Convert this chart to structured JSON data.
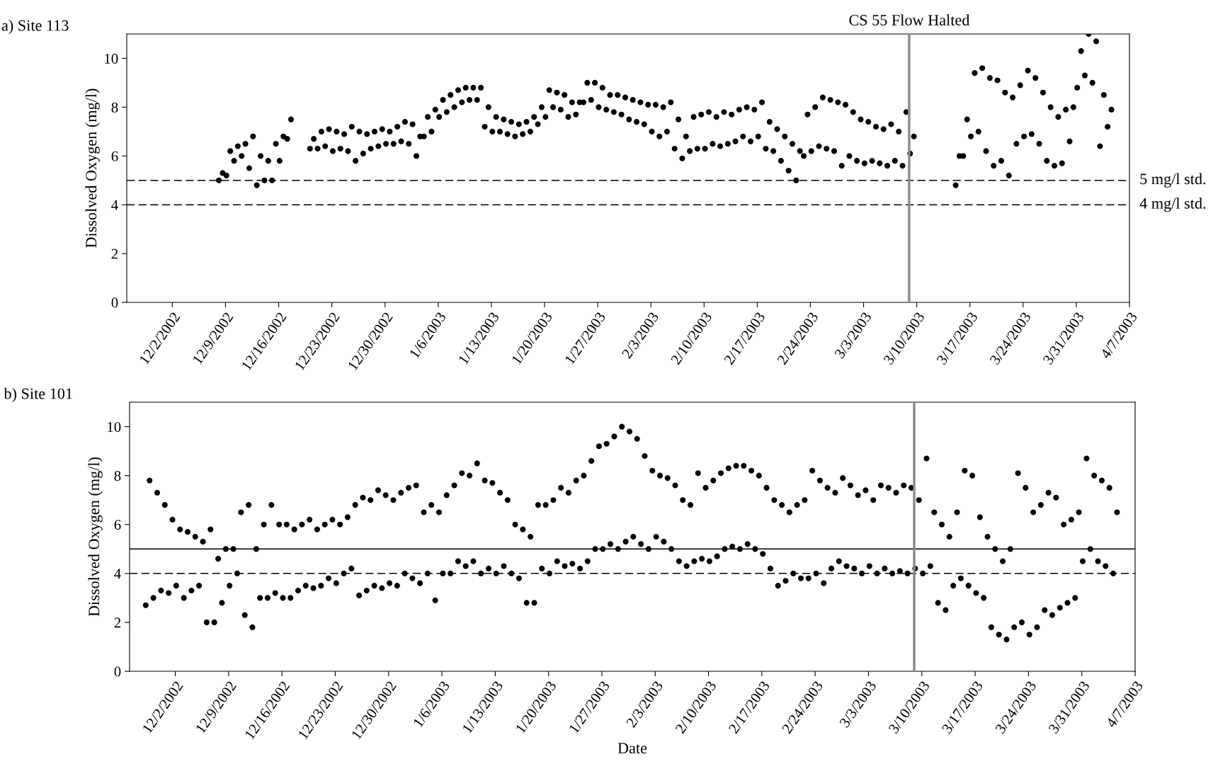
{
  "chart_data": [
    {
      "type": "scatter",
      "title": "a) Site 113",
      "ylabel": "Dissolved Oxygen (mg/l)",
      "marker": "circle",
      "xlim": [
        "2002-11-26",
        "2003-04-07"
      ],
      "xticks": [
        {
          "value": "2002-12-02",
          "label": "12/2/2002"
        },
        {
          "value": "2002-12-09",
          "label": "12/9/2002"
        },
        {
          "value": "2002-12-16",
          "label": "12/16/2002"
        },
        {
          "value": "2002-12-23",
          "label": "12/23/2002"
        },
        {
          "value": "2002-12-30",
          "label": "12/30/2002"
        },
        {
          "value": "2003-01-06",
          "label": "1/6/2003"
        },
        {
          "value": "2003-01-13",
          "label": "1/13/2003"
        },
        {
          "value": "2003-01-20",
          "label": "1/20/2003"
        },
        {
          "value": "2003-01-27",
          "label": "1/27/2003"
        },
        {
          "value": "2003-02-03",
          "label": "2/3/2003"
        },
        {
          "value": "2003-02-10",
          "label": "2/10/2003"
        },
        {
          "value": "2003-02-17",
          "label": "2/17/2003"
        },
        {
          "value": "2003-02-24",
          "label": "2/24/2003"
        },
        {
          "value": "2003-03-03",
          "label": "3/3/2003"
        },
        {
          "value": "2003-03-10",
          "label": "3/10/2003"
        },
        {
          "value": "2003-03-17",
          "label": "3/17/2003"
        },
        {
          "value": "2003-03-24",
          "label": "3/24/2003"
        },
        {
          "value": "2003-03-31",
          "label": "3/31/2003"
        },
        {
          "value": "2003-04-07",
          "label": "4/7/2003"
        }
      ],
      "ylim": [
        0,
        11
      ],
      "yticks": [
        0,
        2,
        4,
        6,
        8,
        10
      ],
      "ref_lines": [
        {
          "axis": "y",
          "value": 5,
          "label": "5 mg/l std.",
          "color": "#000000",
          "line_style": "dashed"
        },
        {
          "axis": "y",
          "value": 4,
          "label": "4 mg/l std.",
          "color": "#000000",
          "line_style": "dashed"
        },
        {
          "axis": "x",
          "value": "2003-03-09",
          "label": "CS 55 Flow Halted",
          "color": "#8c8c8c",
          "line_style": "solid"
        }
      ],
      "series": [
        {
          "color": "#000000",
          "x": [
            "2002-12-08T03:00",
            "2002-12-08T15:00",
            "2002-12-09T03:00",
            "2002-12-09T15:00",
            "2002-12-10T03:00",
            "2002-12-10T15:00",
            "2002-12-11T03:00",
            "2002-12-11T15:00",
            "2002-12-12T03:00",
            "2002-12-12T15:00",
            "2002-12-13T03:00",
            "2002-12-13T15:00",
            "2002-12-14T03:00",
            "2002-12-14T15:00",
            "2002-12-15T03:00",
            "2002-12-15T15:00",
            "2002-12-16T03:00",
            "2002-12-16T15:00",
            "2002-12-17T03:00",
            "2002-12-17T15:00",
            "2002-12-20T03:00",
            "2002-12-20T15:00",
            "2002-12-21T03:00",
            "2002-12-21T15:00",
            "2002-12-22T03:00",
            "2002-12-22T15:00",
            "2002-12-23T03:00",
            "2002-12-23T15:00",
            "2002-12-24T03:00",
            "2002-12-24T15:00",
            "2002-12-25T03:00",
            "2002-12-25T15:00",
            "2002-12-26T03:00",
            "2002-12-26T15:00",
            "2002-12-27T03:00",
            "2002-12-27T15:00",
            "2002-12-28T03:00",
            "2002-12-28T15:00",
            "2002-12-29T03:00",
            "2002-12-29T15:00",
            "2002-12-30T03:00",
            "2002-12-30T15:00",
            "2002-12-31T03:00",
            "2002-12-31T15:00",
            "2003-01-01T03:00",
            "2003-01-01T15:00",
            "2003-01-02T03:00",
            "2003-01-02T15:00",
            "2003-01-03T03:00",
            "2003-01-03T15:00",
            "2003-01-04T03:00",
            "2003-01-04T15:00",
            "2003-01-05T03:00",
            "2003-01-05T15:00",
            "2003-01-06T03:00",
            "2003-01-06T15:00",
            "2003-01-07T03:00",
            "2003-01-07T15:00",
            "2003-01-08T03:00",
            "2003-01-08T15:00",
            "2003-01-09T03:00",
            "2003-01-09T15:00",
            "2003-01-10T03:00",
            "2003-01-10T15:00",
            "2003-01-11T03:00",
            "2003-01-11T15:00",
            "2003-01-12T03:00",
            "2003-01-12T15:00",
            "2003-01-13T03:00",
            "2003-01-13T15:00",
            "2003-01-14T03:00",
            "2003-01-14T15:00",
            "2003-01-15T03:00",
            "2003-01-15T15:00",
            "2003-01-16T03:00",
            "2003-01-16T15:00",
            "2003-01-17T03:00",
            "2003-01-17T15:00",
            "2003-01-18T03:00",
            "2003-01-18T15:00",
            "2003-01-19T03:00",
            "2003-01-19T15:00",
            "2003-01-20T03:00",
            "2003-01-20T15:00",
            "2003-01-21T03:00",
            "2003-01-21T15:00",
            "2003-01-22T03:00",
            "2003-01-22T15:00",
            "2003-01-23T03:00",
            "2003-01-23T15:00",
            "2003-01-24T03:00",
            "2003-01-24T15:00",
            "2003-01-25T03:00",
            "2003-01-25T15:00",
            "2003-01-26T03:00",
            "2003-01-26T15:00",
            "2003-01-27T03:00",
            "2003-01-27T15:00",
            "2003-01-28T03:00",
            "2003-01-28T15:00",
            "2003-01-29T03:00",
            "2003-01-29T15:00",
            "2003-01-30T03:00",
            "2003-01-30T15:00",
            "2003-01-31T03:00",
            "2003-01-31T15:00",
            "2003-02-01T03:00",
            "2003-02-01T15:00",
            "2003-02-02T03:00",
            "2003-02-02T15:00",
            "2003-02-03T03:00",
            "2003-02-03T15:00",
            "2003-02-04T03:00",
            "2003-02-04T15:00",
            "2003-02-05T03:00",
            "2003-02-05T15:00",
            "2003-02-06T03:00",
            "2003-02-06T15:00",
            "2003-02-07T03:00",
            "2003-02-07T15:00",
            "2003-02-08T03:00",
            "2003-02-08T15:00",
            "2003-02-09T03:00",
            "2003-02-09T15:00",
            "2003-02-10T03:00",
            "2003-02-10T15:00",
            "2003-02-11T03:00",
            "2003-02-11T15:00",
            "2003-02-12T03:00",
            "2003-02-12T15:00",
            "2003-02-13T03:00",
            "2003-02-13T15:00",
            "2003-02-14T03:00",
            "2003-02-14T15:00",
            "2003-02-15T03:00",
            "2003-02-15T15:00",
            "2003-02-16T03:00",
            "2003-02-16T15:00",
            "2003-02-17T03:00",
            "2003-02-17T15:00",
            "2003-02-18T03:00",
            "2003-02-18T15:00",
            "2003-02-19T03:00",
            "2003-02-19T15:00",
            "2003-02-20T03:00",
            "2003-02-20T15:00",
            "2003-02-21T03:00",
            "2003-02-21T15:00",
            "2003-02-22T03:00",
            "2003-02-22T15:00",
            "2003-02-23T03:00",
            "2003-02-23T15:00",
            "2003-02-24T03:00",
            "2003-02-24T15:00",
            "2003-02-25T03:00",
            "2003-02-25T15:00",
            "2003-02-26T03:00",
            "2003-02-26T15:00",
            "2003-02-27T03:00",
            "2003-02-27T15:00",
            "2003-02-28T03:00",
            "2003-02-28T15:00",
            "2003-03-01T03:00",
            "2003-03-01T15:00",
            "2003-03-02T03:00",
            "2003-03-02T15:00",
            "2003-03-03T03:00",
            "2003-03-03T15:00",
            "2003-03-04T03:00",
            "2003-03-04T15:00",
            "2003-03-05T03:00",
            "2003-03-05T15:00",
            "2003-03-06T03:00",
            "2003-03-06T15:00",
            "2003-03-07T03:00",
            "2003-03-07T15:00",
            "2003-03-08T03:00",
            "2003-03-08T15:00",
            "2003-03-09T03:00",
            "2003-03-09T15:00",
            "2003-03-15T03:00",
            "2003-03-15T15:00",
            "2003-03-16T03:00",
            "2003-03-16T15:00",
            "2003-03-17T03:00",
            "2003-03-17T15:00",
            "2003-03-18T03:00",
            "2003-03-18T15:00",
            "2003-03-19T03:00",
            "2003-03-19T15:00",
            "2003-03-20T03:00",
            "2003-03-20T15:00",
            "2003-03-21T03:00",
            "2003-03-21T15:00",
            "2003-03-22T03:00",
            "2003-03-22T15:00",
            "2003-03-23T03:00",
            "2003-03-23T15:00",
            "2003-03-24T03:00",
            "2003-03-24T15:00",
            "2003-03-25T03:00",
            "2003-03-25T15:00",
            "2003-03-26T03:00",
            "2003-03-26T15:00",
            "2003-03-27T03:00",
            "2003-03-27T15:00",
            "2003-03-28T03:00",
            "2003-03-28T15:00",
            "2003-03-29T03:00",
            "2003-03-29T15:00",
            "2003-03-30T03:00",
            "2003-03-30T15:00",
            "2003-03-31T03:00",
            "2003-03-31T15:00",
            "2003-04-01T03:00",
            "2003-04-01T15:00",
            "2003-04-02T03:00",
            "2003-04-02T15:00",
            "2003-04-03T03:00",
            "2003-04-03T15:00",
            "2003-04-04T03:00",
            "2003-04-04T15:00"
          ],
          "values": [
            5.0,
            5.3,
            5.2,
            6.2,
            5.8,
            6.4,
            6.0,
            6.5,
            5.5,
            6.8,
            4.8,
            6.0,
            5.0,
            5.8,
            5.0,
            6.5,
            5.8,
            6.8,
            6.7,
            7.5,
            6.3,
            6.7,
            6.3,
            7.0,
            6.4,
            7.1,
            6.2,
            7.0,
            6.3,
            6.9,
            6.2,
            7.2,
            5.8,
            7.0,
            6.1,
            6.9,
            6.3,
            7.0,
            6.4,
            7.1,
            6.5,
            7.0,
            6.5,
            7.2,
            6.6,
            7.4,
            6.5,
            7.3,
            6.0,
            6.8,
            6.8,
            7.6,
            7.0,
            7.9,
            7.6,
            8.3,
            7.8,
            8.5,
            8.0,
            8.7,
            8.2,
            8.8,
            8.3,
            8.8,
            8.3,
            8.8,
            7.2,
            8.0,
            7.0,
            7.6,
            7.0,
            7.5,
            6.9,
            7.4,
            6.8,
            7.3,
            6.9,
            7.4,
            7.0,
            7.6,
            7.3,
            8.0,
            7.6,
            8.7,
            8.0,
            8.6,
            7.9,
            8.5,
            7.6,
            8.2,
            7.7,
            8.2,
            8.2,
            9.0,
            8.3,
            9.0,
            8.0,
            8.8,
            7.9,
            8.5,
            7.8,
            8.5,
            7.7,
            8.4,
            7.5,
            8.3,
            7.4,
            8.2,
            7.3,
            8.1,
            7.0,
            8.1,
            6.8,
            8.0,
            7.0,
            8.2,
            6.3,
            7.5,
            5.9,
            6.8,
            6.2,
            7.6,
            6.3,
            7.7,
            6.3,
            7.8,
            6.5,
            7.6,
            6.4,
            7.8,
            6.5,
            7.7,
            6.6,
            7.9,
            6.8,
            8.0,
            6.6,
            7.9,
            6.8,
            8.2,
            6.3,
            7.4,
            6.2,
            7.1,
            5.8,
            6.8,
            5.4,
            6.5,
            5.0,
            6.2,
            6.0,
            7.7,
            6.2,
            8.0,
            6.4,
            8.4,
            6.3,
            8.3,
            6.2,
            8.2,
            5.6,
            8.1,
            6.0,
            7.8,
            5.8,
            7.5,
            5.7,
            7.4,
            5.8,
            7.2,
            5.7,
            7.1,
            5.6,
            7.3,
            5.8,
            7.0,
            5.6,
            7.8,
            6.1,
            6.8,
            4.8,
            6.0,
            6.0,
            7.5,
            6.8,
            9.4,
            7.0,
            9.6,
            6.2,
            9.2,
            5.6,
            9.1,
            5.8,
            8.6,
            5.2,
            8.4,
            6.5,
            8.9,
            6.8,
            9.5,
            6.9,
            9.2,
            6.5,
            8.6,
            5.8,
            8.0,
            5.6,
            7.6,
            5.7,
            7.9,
            6.6,
            8.0,
            8.8,
            10.3,
            9.3,
            11.0,
            9.0,
            10.7,
            6.4,
            8.5,
            7.2,
            7.9
          ]
        }
      ]
    },
    {
      "type": "scatter",
      "title": "b) Site 101",
      "xlabel": "Date",
      "ylabel": "Dissolved Oxygen (mg/l)",
      "marker": "circle",
      "xlim": [
        "2002-11-26",
        "2003-04-07"
      ],
      "xticks": [
        {
          "value": "2002-12-02",
          "label": "12/2/2002"
        },
        {
          "value": "2002-12-09",
          "label": "12/9/2002"
        },
        {
          "value": "2002-12-16",
          "label": "12/16/2002"
        },
        {
          "value": "2002-12-23",
          "label": "12/23/2002"
        },
        {
          "value": "2002-12-30",
          "label": "12/30/2002"
        },
        {
          "value": "2003-01-06",
          "label": "1/6/2003"
        },
        {
          "value": "2003-01-13",
          "label": "1/13/2003"
        },
        {
          "value": "2003-01-20",
          "label": "1/20/2003"
        },
        {
          "value": "2003-01-27",
          "label": "1/27/2003"
        },
        {
          "value": "2003-02-03",
          "label": "2/3/2003"
        },
        {
          "value": "2003-02-10",
          "label": "2/10/2003"
        },
        {
          "value": "2003-02-17",
          "label": "2/17/2003"
        },
        {
          "value": "2003-02-24",
          "label": "2/24/2003"
        },
        {
          "value": "2003-03-03",
          "label": "3/3/2003"
        },
        {
          "value": "2003-03-10",
          "label": "3/10/2003"
        },
        {
          "value": "2003-03-17",
          "label": "3/17/2003"
        },
        {
          "value": "2003-03-24",
          "label": "3/24/2003"
        },
        {
          "value": "2003-03-31",
          "label": "3/31/2003"
        },
        {
          "value": "2003-04-07",
          "label": "4/7/2003"
        }
      ],
      "ylim": [
        0,
        11
      ],
      "yticks": [
        0,
        2,
        4,
        6,
        8,
        10
      ],
      "ref_lines": [
        {
          "axis": "y",
          "value": 5,
          "label": null,
          "color": "#000000",
          "line_style": "solid"
        },
        {
          "axis": "y",
          "value": 4,
          "label": null,
          "color": "#000000",
          "line_style": "dashed"
        },
        {
          "axis": "x",
          "value": "2003-03-09",
          "label": null,
          "color": "#8c8c8c",
          "line_style": "solid"
        }
      ],
      "series": [
        {
          "color": "#000000",
          "x": [
            "2002-11-28T03:00",
            "2002-11-28T15:00",
            "2002-11-29T03:00",
            "2002-11-29T15:00",
            "2002-11-30T03:00",
            "2002-11-30T15:00",
            "2002-12-01T03:00",
            "2002-12-01T15:00",
            "2002-12-02T03:00",
            "2002-12-02T15:00",
            "2002-12-03T03:00",
            "2002-12-03T15:00",
            "2002-12-04T03:00",
            "2002-12-04T15:00",
            "2002-12-05T03:00",
            "2002-12-05T15:00",
            "2002-12-06T03:00",
            "2002-12-06T15:00",
            "2002-12-07T03:00",
            "2002-12-07T15:00",
            "2002-12-08T03:00",
            "2002-12-08T15:00",
            "2002-12-09T03:00",
            "2002-12-09T15:00",
            "2002-12-10T03:00",
            "2002-12-10T15:00",
            "2002-12-11T03:00",
            "2002-12-11T15:00",
            "2002-12-12T03:00",
            "2002-12-12T15:00",
            "2002-12-13T03:00",
            "2002-12-13T15:00",
            "2002-12-14T03:00",
            "2002-12-14T15:00",
            "2002-12-15T03:00",
            "2002-12-15T15:00",
            "2002-12-16T03:00",
            "2002-12-16T15:00",
            "2002-12-17T03:00",
            "2002-12-17T15:00",
            "2002-12-18T03:00",
            "2002-12-18T15:00",
            "2002-12-19T03:00",
            "2002-12-19T15:00",
            "2002-12-20T03:00",
            "2002-12-20T15:00",
            "2002-12-21T03:00",
            "2002-12-21T15:00",
            "2002-12-22T03:00",
            "2002-12-22T15:00",
            "2002-12-23T03:00",
            "2002-12-23T15:00",
            "2002-12-24T03:00",
            "2002-12-24T15:00",
            "2002-12-25T03:00",
            "2002-12-25T15:00",
            "2002-12-26T03:00",
            "2002-12-26T15:00",
            "2002-12-27T03:00",
            "2002-12-27T15:00",
            "2002-12-28T03:00",
            "2002-12-28T15:00",
            "2002-12-29T03:00",
            "2002-12-29T15:00",
            "2002-12-30T03:00",
            "2002-12-30T15:00",
            "2002-12-31T03:00",
            "2002-12-31T15:00",
            "2003-01-01T03:00",
            "2003-01-01T15:00",
            "2003-01-02T03:00",
            "2003-01-02T15:00",
            "2003-01-03T03:00",
            "2003-01-03T15:00",
            "2003-01-04T03:00",
            "2003-01-04T15:00",
            "2003-01-05T03:00",
            "2003-01-05T15:00",
            "2003-01-06T03:00",
            "2003-01-06T15:00",
            "2003-01-07T03:00",
            "2003-01-07T15:00",
            "2003-01-08T03:00",
            "2003-01-08T15:00",
            "2003-01-09T03:00",
            "2003-01-09T15:00",
            "2003-01-10T03:00",
            "2003-01-10T15:00",
            "2003-01-11T03:00",
            "2003-01-11T15:00",
            "2003-01-12T03:00",
            "2003-01-12T15:00",
            "2003-01-13T03:00",
            "2003-01-13T15:00",
            "2003-01-14T03:00",
            "2003-01-14T15:00",
            "2003-01-15T03:00",
            "2003-01-15T15:00",
            "2003-01-16T03:00",
            "2003-01-16T15:00",
            "2003-01-17T03:00",
            "2003-01-17T15:00",
            "2003-01-18T03:00",
            "2003-01-18T15:00",
            "2003-01-19T03:00",
            "2003-01-19T15:00",
            "2003-01-20T03:00",
            "2003-01-20T15:00",
            "2003-01-21T03:00",
            "2003-01-21T15:00",
            "2003-01-22T03:00",
            "2003-01-22T15:00",
            "2003-01-23T03:00",
            "2003-01-23T15:00",
            "2003-01-24T03:00",
            "2003-01-24T15:00",
            "2003-01-25T03:00",
            "2003-01-25T15:00",
            "2003-01-26T03:00",
            "2003-01-26T15:00",
            "2003-01-27T03:00",
            "2003-01-27T15:00",
            "2003-01-28T03:00",
            "2003-01-28T15:00",
            "2003-01-29T03:00",
            "2003-01-29T15:00",
            "2003-01-30T03:00",
            "2003-01-30T15:00",
            "2003-01-31T03:00",
            "2003-01-31T15:00",
            "2003-02-01T03:00",
            "2003-02-01T15:00",
            "2003-02-02T03:00",
            "2003-02-02T15:00",
            "2003-02-03T03:00",
            "2003-02-03T15:00",
            "2003-02-04T03:00",
            "2003-02-04T15:00",
            "2003-02-05T03:00",
            "2003-02-05T15:00",
            "2003-02-06T03:00",
            "2003-02-06T15:00",
            "2003-02-07T03:00",
            "2003-02-07T15:00",
            "2003-02-08T03:00",
            "2003-02-08T15:00",
            "2003-02-09T03:00",
            "2003-02-09T15:00",
            "2003-02-10T03:00",
            "2003-02-10T15:00",
            "2003-02-11T03:00",
            "2003-02-11T15:00",
            "2003-02-12T03:00",
            "2003-02-12T15:00",
            "2003-02-13T03:00",
            "2003-02-13T15:00",
            "2003-02-14T03:00",
            "2003-02-14T15:00",
            "2003-02-15T03:00",
            "2003-02-15T15:00",
            "2003-02-16T03:00",
            "2003-02-16T15:00",
            "2003-02-17T03:00",
            "2003-02-17T15:00",
            "2003-02-18T03:00",
            "2003-02-18T15:00",
            "2003-02-19T03:00",
            "2003-02-19T15:00",
            "2003-02-20T03:00",
            "2003-02-20T15:00",
            "2003-02-21T03:00",
            "2003-02-21T15:00",
            "2003-02-22T03:00",
            "2003-02-22T15:00",
            "2003-02-23T03:00",
            "2003-02-23T15:00",
            "2003-02-24T03:00",
            "2003-02-24T15:00",
            "2003-02-25T03:00",
            "2003-02-25T15:00",
            "2003-02-26T03:00",
            "2003-02-26T15:00",
            "2003-02-27T03:00",
            "2003-02-27T15:00",
            "2003-02-28T03:00",
            "2003-02-28T15:00",
            "2003-03-01T03:00",
            "2003-03-01T15:00",
            "2003-03-02T03:00",
            "2003-03-02T15:00",
            "2003-03-03T03:00",
            "2003-03-03T15:00",
            "2003-03-04T03:00",
            "2003-03-04T15:00",
            "2003-03-05T03:00",
            "2003-03-05T15:00",
            "2003-03-06T03:00",
            "2003-03-06T15:00",
            "2003-03-07T03:00",
            "2003-03-07T15:00",
            "2003-03-08T03:00",
            "2003-03-08T15:00",
            "2003-03-09T03:00",
            "2003-03-09T15:00",
            "2003-03-10T03:00",
            "2003-03-10T15:00",
            "2003-03-11T03:00",
            "2003-03-11T15:00",
            "2003-03-12T03:00",
            "2003-03-12T15:00",
            "2003-03-13T03:00",
            "2003-03-13T15:00",
            "2003-03-14T03:00",
            "2003-03-14T15:00",
            "2003-03-15T03:00",
            "2003-03-15T15:00",
            "2003-03-16T03:00",
            "2003-03-16T15:00",
            "2003-03-17T03:00",
            "2003-03-17T15:00",
            "2003-03-18T03:00",
            "2003-03-18T15:00",
            "2003-03-19T03:00",
            "2003-03-19T15:00",
            "2003-03-20T03:00",
            "2003-03-20T15:00",
            "2003-03-21T03:00",
            "2003-03-21T15:00",
            "2003-03-22T03:00",
            "2003-03-22T15:00",
            "2003-03-23T03:00",
            "2003-03-23T15:00",
            "2003-03-24T03:00",
            "2003-03-24T15:00",
            "2003-03-25T03:00",
            "2003-03-25T15:00",
            "2003-03-26T03:00",
            "2003-03-26T15:00",
            "2003-03-27T03:00",
            "2003-03-27T15:00",
            "2003-03-28T03:00",
            "2003-03-28T15:00",
            "2003-03-29T03:00",
            "2003-03-29T15:00",
            "2003-03-30T03:00",
            "2003-03-30T15:00",
            "2003-03-31T03:00",
            "2003-03-31T15:00",
            "2003-04-01T03:00",
            "2003-04-01T15:00",
            "2003-04-02T03:00",
            "2003-04-02T15:00",
            "2003-04-03T03:00",
            "2003-04-03T15:00",
            "2003-04-04T03:00",
            "2003-04-04T15:00"
          ],
          "values": [
            2.7,
            7.8,
            3.0,
            7.3,
            3.3,
            6.8,
            3.2,
            6.2,
            3.5,
            5.8,
            3.0,
            5.7,
            3.3,
            5.5,
            3.5,
            5.3,
            2.0,
            5.8,
            2.0,
            4.6,
            2.8,
            5.0,
            3.5,
            5.0,
            4.0,
            6.5,
            2.3,
            6.8,
            1.8,
            5.0,
            3.0,
            6.0,
            3.0,
            6.8,
            3.2,
            6.0,
            3.0,
            6.0,
            3.0,
            5.8,
            3.3,
            6.0,
            3.5,
            6.2,
            3.4,
            5.8,
            3.5,
            6.0,
            3.8,
            6.2,
            3.6,
            6.0,
            4.0,
            6.3,
            4.2,
            6.8,
            3.1,
            7.1,
            3.3,
            7.0,
            3.5,
            7.4,
            3.4,
            7.2,
            3.6,
            7.0,
            3.5,
            7.3,
            4.0,
            7.5,
            3.8,
            7.6,
            3.6,
            6.5,
            4.0,
            6.8,
            2.9,
            6.5,
            4.0,
            7.2,
            4.0,
            7.6,
            4.5,
            8.1,
            4.3,
            8.0,
            4.5,
            8.5,
            4.0,
            7.8,
            4.2,
            7.7,
            4.0,
            7.3,
            4.3,
            7.0,
            4.0,
            6.0,
            3.8,
            5.8,
            2.8,
            5.5,
            2.8,
            6.8,
            4.2,
            6.8,
            4.0,
            7.0,
            4.5,
            7.5,
            4.3,
            7.3,
            4.4,
            7.8,
            4.2,
            8.0,
            4.5,
            8.6,
            5.0,
            9.2,
            5.0,
            9.3,
            5.2,
            9.6,
            5.0,
            10.0,
            5.3,
            9.8,
            5.5,
            9.5,
            5.2,
            8.8,
            5.0,
            8.2,
            5.5,
            8.0,
            5.3,
            7.9,
            5.0,
            7.6,
            4.5,
            7.0,
            4.3,
            6.8,
            4.5,
            8.1,
            4.6,
            7.5,
            4.5,
            7.8,
            4.7,
            8.1,
            5.0,
            8.3,
            5.1,
            8.4,
            5.0,
            8.4,
            5.2,
            8.2,
            5.0,
            8.0,
            4.8,
            7.5,
            4.2,
            7.0,
            3.5,
            6.8,
            3.7,
            6.5,
            4.0,
            6.8,
            3.8,
            7.0,
            3.8,
            8.2,
            4.0,
            7.8,
            3.6,
            7.5,
            4.2,
            7.3,
            4.5,
            7.9,
            4.3,
            7.6,
            4.2,
            7.2,
            4.0,
            7.4,
            4.3,
            7.0,
            4.0,
            7.6,
            4.2,
            7.5,
            4.0,
            7.3,
            4.1,
            7.6,
            4.0,
            7.5,
            4.2,
            7.0,
            4.0,
            8.7,
            4.3,
            6.5,
            2.8,
            6.0,
            2.5,
            5.5,
            3.5,
            6.5,
            3.8,
            8.2,
            3.5,
            8.0,
            3.2,
            6.3,
            3.0,
            5.5,
            1.8,
            5.0,
            1.5,
            4.5,
            1.3,
            5.0,
            1.8,
            8.1,
            2.0,
            7.5,
            1.5,
            6.5,
            1.8,
            6.8,
            2.5,
            7.3,
            2.3,
            7.1,
            2.6,
            6.0,
            2.8,
            6.2,
            3.0,
            6.5,
            4.5,
            8.7,
            5.0,
            8.0,
            4.5,
            7.8,
            4.3,
            7.5,
            4.0,
            6.5
          ]
        }
      ]
    }
  ]
}
